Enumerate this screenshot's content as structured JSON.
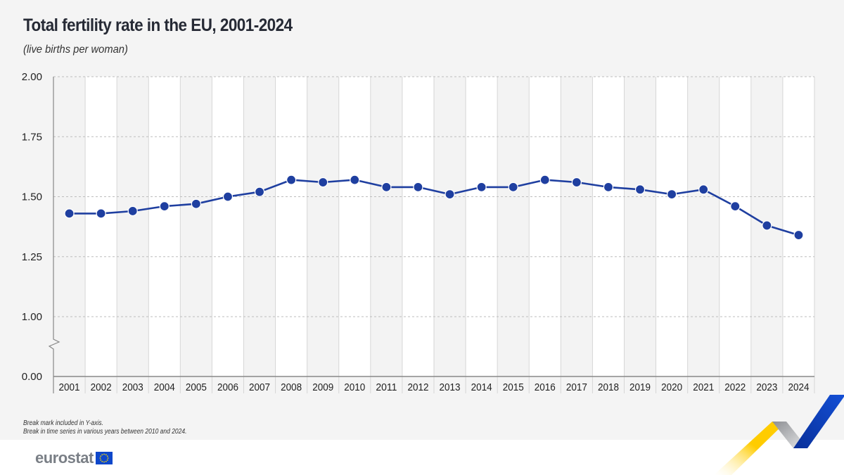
{
  "header": {
    "title": "Total fertility rate in the EU, 2001-2024",
    "subtitle": "(live births per woman)"
  },
  "footer": {
    "notes": [
      "Break mark included in Y-axis.",
      "Break in time series in various years between 2010 and 2024."
    ],
    "logo_text": "eurostat",
    "logo_flag_icon": "eu-flag-icon",
    "decoration": "eurostat-ribbon"
  },
  "colors": {
    "series": "#1f3fa0",
    "band_shaded": "#f3f3f3",
    "band_plain": "#ffffff",
    "ribbon_yellow": "#ffcc00",
    "ribbon_blue": "#0e47cb",
    "ribbon_grey": "#a7a9ac"
  },
  "chart_data": {
    "type": "line",
    "title": "Total fertility rate in the EU, 2001-2024",
    "subtitle": "(live births per woman)",
    "xlabel": "",
    "ylabel": "",
    "categories": [
      "2001",
      "2002",
      "2003",
      "2004",
      "2005",
      "2006",
      "2007",
      "2008",
      "2009",
      "2010",
      "2011",
      "2012",
      "2013",
      "2014",
      "2015",
      "2016",
      "2017",
      "2018",
      "2019",
      "2020",
      "2021",
      "2022",
      "2023",
      "2024"
    ],
    "series": [
      {
        "name": "Total fertility rate",
        "values": [
          1.43,
          1.43,
          1.44,
          1.46,
          1.47,
          1.5,
          1.52,
          1.57,
          1.56,
          1.57,
          1.54,
          1.54,
          1.51,
          1.54,
          1.54,
          1.57,
          1.56,
          1.54,
          1.53,
          1.51,
          1.53,
          1.46,
          1.38,
          1.34
        ]
      }
    ],
    "yticks": [
      "0.00",
      "1.00",
      "1.25",
      "1.50",
      "1.75",
      "2.00"
    ],
    "ylim": [
      0,
      2.0
    ],
    "y_break": [
      0,
      1.0
    ],
    "grid": "horizontal-dashed",
    "legend": "none",
    "markers": "circle"
  }
}
